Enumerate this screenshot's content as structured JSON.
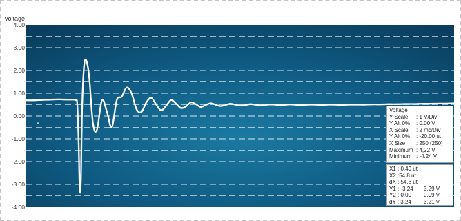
{
  "chart_data": {
    "type": "line",
    "ylabel": "voltage",
    "ylim": [
      -4,
      4
    ],
    "yticks": [
      "4.00",
      "3.00",
      "2.00",
      "1.00",
      "0.00",
      "-1.00",
      "-2.00",
      "-3.00",
      "-4.00"
    ],
    "grid": true,
    "background_colors": [
      "#1b7aa2",
      "#0f5a82",
      "#0a3e5e"
    ],
    "line_color": "#ffffff",
    "series": [
      {
        "name": "v",
        "x": [
          0,
          0.5,
          0.75,
          1,
          1.5,
          2,
          2.5,
          2.8,
          3.0,
          3.1,
          3.18,
          3.25,
          3.32,
          3.4,
          3.55,
          3.8,
          4.05,
          4.3,
          4.6,
          4.9,
          5.2,
          5.5,
          5.8,
          6.1,
          6.4,
          6.7,
          7.0,
          7.3,
          7.6,
          7.9,
          8.2,
          8.5,
          8.8,
          9.1,
          9.4,
          9.7,
          10.0,
          10.3,
          10.6,
          10.9,
          11.2,
          11.5,
          11.8,
          12.1,
          12.4,
          12.7,
          13.0,
          13.3,
          13.6,
          13.9,
          14.2,
          14.5,
          14.8,
          15.1,
          15.4,
          15.7,
          16.0,
          16.3,
          16.6,
          16.9,
          17.2,
          17.5,
          17.8,
          18.1,
          18.4,
          18.7,
          19.0,
          19.3,
          19.6,
          19.9,
          20.2,
          20.6,
          21.0,
          21.5,
          22.0,
          22.5,
          23.0,
          23.5,
          24.0,
          24.5,
          25.0,
          25.5,
          26.0
        ],
        "y": [
          0.69,
          0.69,
          0.7,
          0.71,
          0.72,
          0.73,
          0.72,
          0.72,
          0.7,
          0.55,
          -1.0,
          -3.2,
          -2.8,
          0.5,
          2.4,
          1.9,
          -0.3,
          -0.6,
          0.7,
          0.2,
          -0.5,
          0.7,
          0.85,
          1.25,
          1.0,
          0.3,
          0.18,
          0.6,
          0.8,
          0.5,
          0.25,
          0.45,
          0.7,
          0.55,
          0.35,
          0.42,
          0.6,
          0.52,
          0.4,
          0.48,
          0.56,
          0.5,
          0.44,
          0.48,
          0.54,
          0.5,
          0.46,
          0.48,
          0.52,
          0.5,
          0.47,
          0.48,
          0.51,
          0.5,
          0.48,
          0.49,
          0.51,
          0.5,
          0.48,
          0.49,
          0.5,
          0.5,
          0.49,
          0.49,
          0.5,
          0.5,
          0.49,
          0.49,
          0.5,
          0.5,
          0.5,
          0.5,
          0.51,
          0.51,
          0.52,
          0.52,
          0.53,
          0.53,
          0.54,
          0.54,
          0.55,
          0.55,
          0.56
        ]
      }
    ],
    "xlim": [
      0,
      26
    ]
  },
  "settings_panel": {
    "title": "Voltage",
    "rows": [
      {
        "label": "Y Scale",
        "value": ": 1 V/Div"
      },
      {
        "label": "Y Alt 0%",
        "value": ": 0.00 V"
      },
      {
        "label": "X Scale",
        "value": ": 2 mc/Div"
      },
      {
        "label": "Y Alt 0%",
        "value": ": -20.00 ut"
      },
      {
        "label": "X Size",
        "value": ": 250 (250)"
      },
      {
        "label": "Maximum",
        "value": ": 4,22 V"
      },
      {
        "label": "Minimum",
        "value": ": -4.24 V"
      }
    ]
  },
  "cursor_panel": {
    "rows": [
      {
        "a": "X1 : 0.40 ut",
        "b": ""
      },
      {
        "a": "X2 :54.8 ut",
        "b": ""
      },
      {
        "a": "dX : 54.8 ut",
        "b": ""
      },
      {
        "a": "Y1 : -3.24",
        "b": "3.29 V"
      },
      {
        "a": "Y2 : 0.00",
        "b": "0.09 V"
      },
      {
        "a": "dY : 3.24",
        "b": "3.21 V"
      }
    ]
  }
}
